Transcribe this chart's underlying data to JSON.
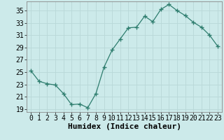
{
  "x": [
    0,
    1,
    2,
    3,
    4,
    5,
    6,
    7,
    8,
    9,
    10,
    11,
    12,
    13,
    14,
    15,
    16,
    17,
    18,
    19,
    20,
    21,
    22,
    23
  ],
  "y": [
    25.2,
    23.5,
    23.1,
    22.9,
    21.5,
    19.7,
    19.8,
    19.2,
    21.5,
    25.8,
    28.6,
    30.4,
    32.2,
    32.3,
    34.1,
    33.2,
    35.2,
    36.0,
    35.0,
    34.2,
    33.1,
    32.3,
    31.0,
    29.2
  ],
  "line_color": "#2e7d6e",
  "marker": "+",
  "marker_size": 4,
  "marker_lw": 1.0,
  "bg_color": "#cceaea",
  "grid_color": "#b8d8d8",
  "xlabel": "Humidex (Indice chaleur)",
  "xlim": [
    -0.5,
    23.5
  ],
  "ylim": [
    18.5,
    36.5
  ],
  "yticks": [
    19,
    21,
    23,
    25,
    27,
    29,
    31,
    33,
    35
  ],
  "xtick_labels": [
    "0",
    "1",
    "2",
    "3",
    "4",
    "5",
    "6",
    "7",
    "8",
    "9",
    "10",
    "11",
    "12",
    "13",
    "14",
    "15",
    "16",
    "17",
    "18",
    "19",
    "20",
    "21",
    "22",
    "23"
  ],
  "xlabel_fontsize": 8,
  "tick_fontsize": 7
}
